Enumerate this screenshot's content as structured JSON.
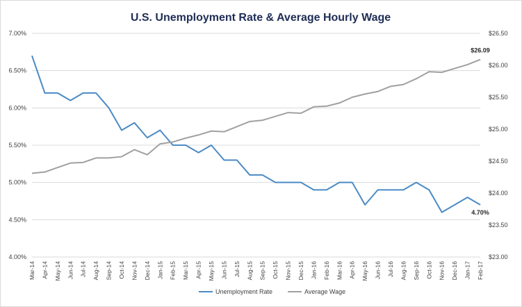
{
  "chart_data": {
    "type": "line",
    "title": "U.S. Unemployment Rate & Average Hourly Wage",
    "xlabel": "",
    "categories": [
      "Mar-14",
      "Apr-14",
      "May-14",
      "Jun-14",
      "Jul-14",
      "Aug-14",
      "Sep-14",
      "Oct-14",
      "Nov-14",
      "Dec-14",
      "Jan-15",
      "Feb-15",
      "Mar-15",
      "Apr-15",
      "May-15",
      "Jun-15",
      "Jul-15",
      "Aug-15",
      "Sep-15",
      "Oct-15",
      "Nov-15",
      "Dec-15",
      "Jan-16",
      "Feb-16",
      "Mar-16",
      "Apr-16",
      "May-16",
      "Jun-16",
      "Jul-16",
      "Aug-16",
      "Sep-16",
      "Oct-16",
      "Nov-16",
      "Dec-16",
      "Jan-17",
      "Feb-17"
    ],
    "y_left": {
      "ylabel": "",
      "ylim": [
        0.04,
        0.07
      ],
      "ticks": [
        0.04,
        0.045,
        0.05,
        0.055,
        0.06,
        0.065,
        0.07
      ],
      "tick_labels": [
        "4.00%",
        "4.50%",
        "5.00%",
        "5.50%",
        "6.00%",
        "6.50%",
        "7.00%"
      ]
    },
    "y_right": {
      "ylabel": "",
      "ylim": [
        23.0,
        26.5
      ],
      "ticks": [
        23.0,
        23.5,
        24.0,
        24.5,
        25.0,
        25.5,
        26.0,
        26.5
      ],
      "tick_labels": [
        "$23.00",
        "$23.50",
        "$24.00",
        "$24.50",
        "$25.00",
        "$25.50",
        "$26.00",
        "$26.50"
      ]
    },
    "series": [
      {
        "name": "Unemployment Rate",
        "axis": "left",
        "color": "#4a8ac4",
        "values": [
          0.067,
          0.062,
          0.062,
          0.061,
          0.062,
          0.062,
          0.06,
          0.057,
          0.058,
          0.056,
          0.057,
          0.055,
          0.055,
          0.054,
          0.055,
          0.053,
          0.053,
          0.051,
          0.051,
          0.05,
          0.05,
          0.05,
          0.049,
          0.049,
          0.05,
          0.05,
          0.047,
          0.049,
          0.049,
          0.049,
          0.05,
          0.049,
          0.046,
          0.047,
          0.048,
          0.047
        ]
      },
      {
        "name": "Average Wage",
        "axis": "right",
        "color": "#a0a0a0",
        "values": [
          24.31,
          24.33,
          24.4,
          24.47,
          24.48,
          24.55,
          24.55,
          24.57,
          24.68,
          24.6,
          24.77,
          24.8,
          24.86,
          24.91,
          24.97,
          24.96,
          25.04,
          25.12,
          25.14,
          25.2,
          25.26,
          25.25,
          25.35,
          25.36,
          25.41,
          25.5,
          25.55,
          25.59,
          25.67,
          25.7,
          25.79,
          25.9,
          25.89,
          25.95,
          26.01,
          26.09
        ]
      }
    ],
    "annotations": [
      {
        "series": "Unemployment Rate",
        "index": 35,
        "text": "4.70%"
      },
      {
        "series": "Average Wage",
        "index": 35,
        "text": "$26.09"
      }
    ],
    "grid": true,
    "legend": "bottom"
  }
}
